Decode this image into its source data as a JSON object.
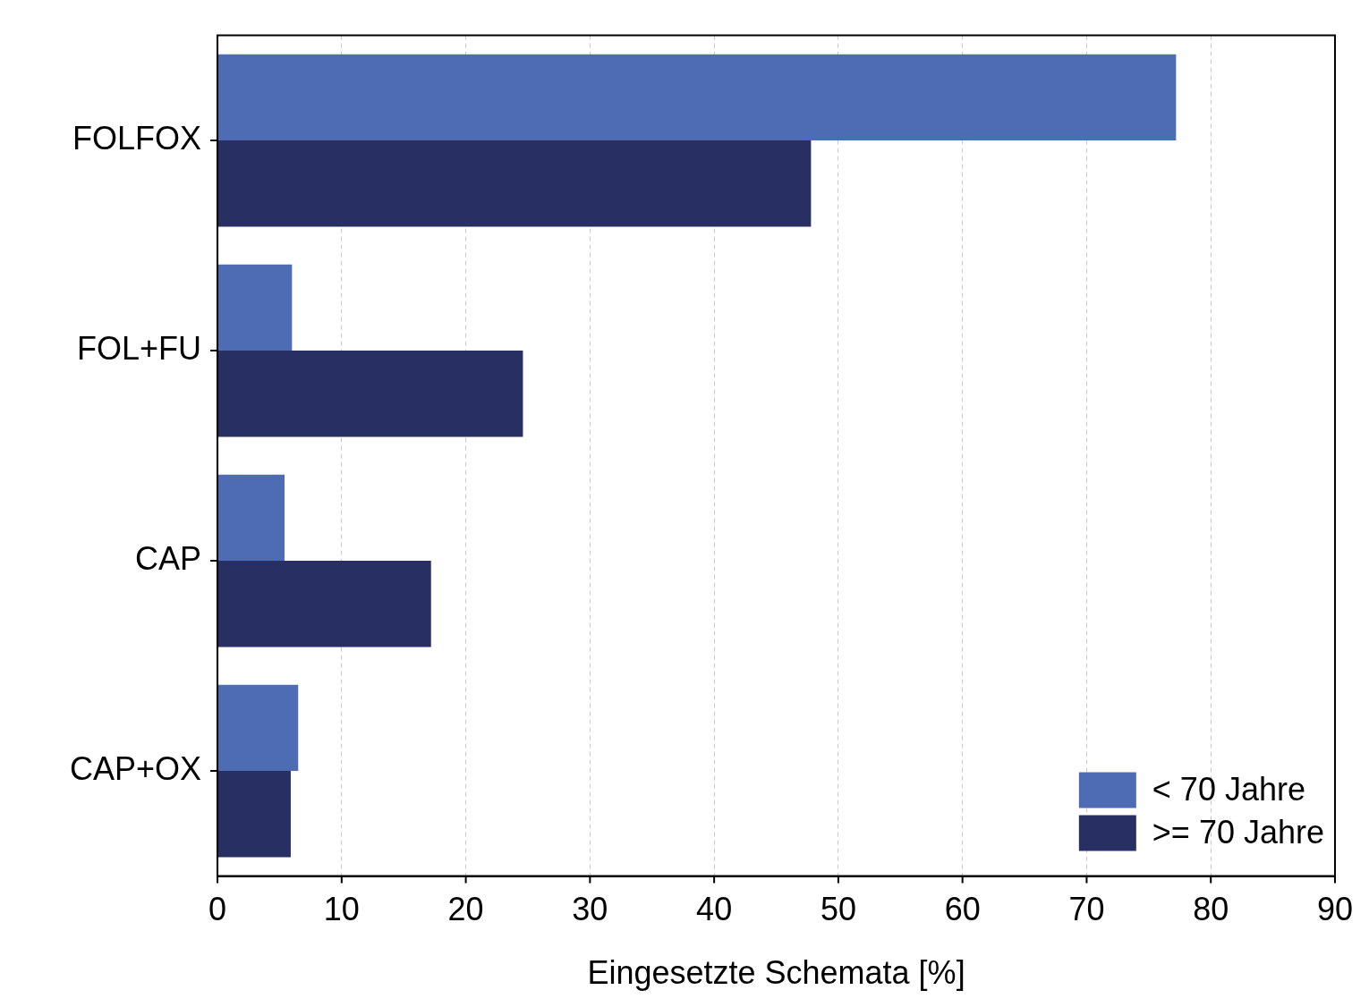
{
  "chart_data": {
    "type": "bar",
    "orientation": "horizontal",
    "xlabel": "Eingesetzte Schemata [%]",
    "categories": [
      "FOLFOX",
      "FOL+FU",
      "CAP",
      "CAP+OX"
    ],
    "series": [
      {
        "name": "< 70 Jahre",
        "color": "#4e6cb3",
        "values": [
          77.2,
          6.0,
          5.4,
          6.5
        ]
      },
      {
        "name": ">= 70 Jahre",
        "color": "#272f63",
        "values": [
          47.8,
          24.6,
          17.2,
          5.9
        ]
      }
    ],
    "xlim": [
      0,
      90
    ],
    "xticks": [
      0,
      10,
      20,
      30,
      40,
      50,
      60,
      70,
      80,
      90
    ],
    "grid": "x",
    "legend": "bottom right"
  }
}
